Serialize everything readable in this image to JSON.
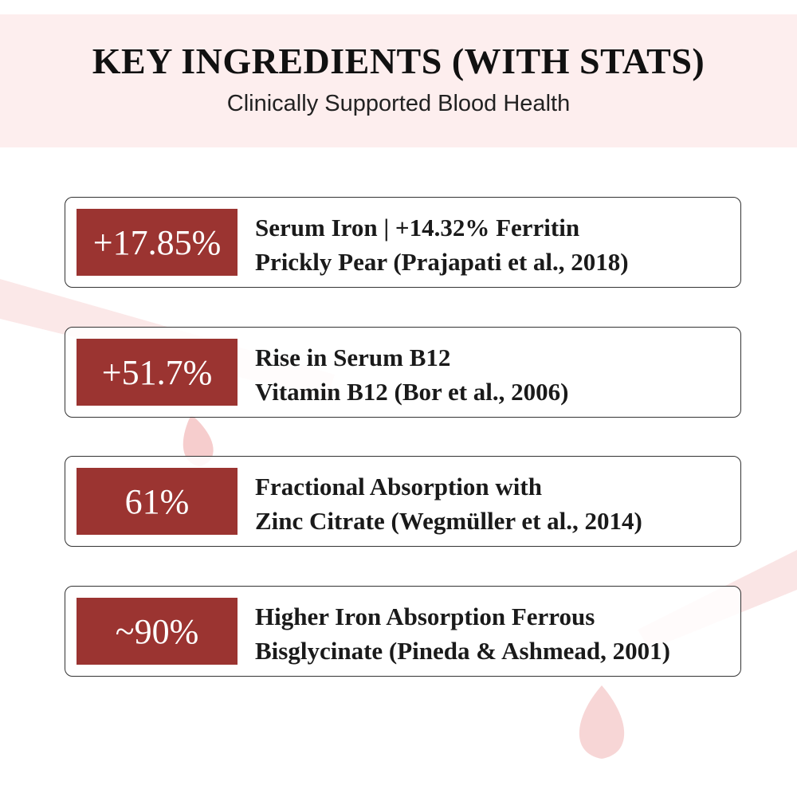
{
  "header": {
    "title": "KEY INGREDIENTS (WITH STATS)",
    "subtitle": "Clinically Supported Blood Health"
  },
  "items": [
    {
      "stat": "+17.85%",
      "line1": "Serum Iron | +14.32% Ferritin",
      "line2": "Prickly Pear (Prajapati et al., 2018)"
    },
    {
      "stat": "+51.7%",
      "line1": "Rise in Serum B12",
      "line2": "Vitamin B12 (Bor et al., 2006)"
    },
    {
      "stat": "61%",
      "line1": "Fractional Absorption with",
      "line2": "Zinc Citrate (Wegmüller et al., 2014)"
    },
    {
      "stat": "~90%",
      "line1": "Higher Iron Absorption Ferrous",
      "line2": "Bisglycinate (Pineda & Ashmead, 2001)"
    }
  ]
}
